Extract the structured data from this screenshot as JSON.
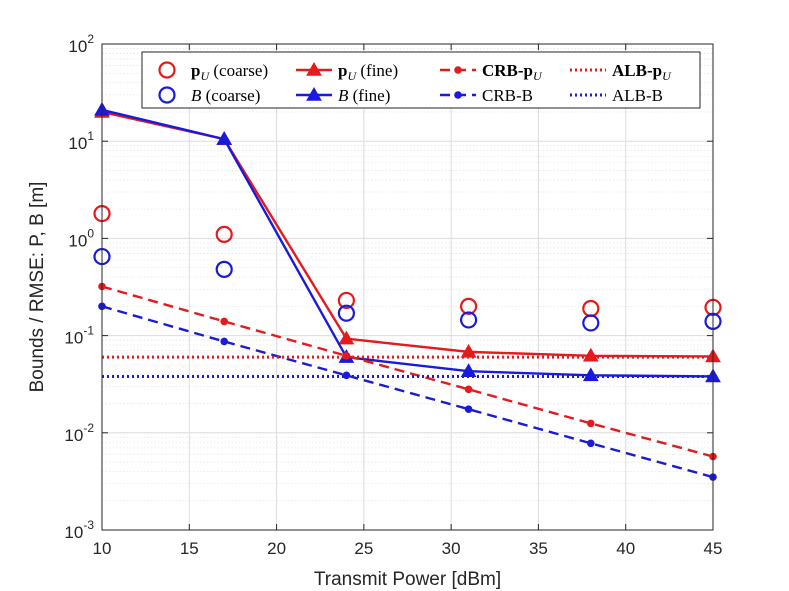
{
  "chart_data": {
    "type": "line",
    "xlabel": "Transmit Power [dBm]",
    "ylabel": "Bounds / RMSE: P, B [m]",
    "yscale": "log",
    "xlim": [
      10,
      45
    ],
    "ylim": [
      0.001,
      100
    ],
    "xticks": [
      "10",
      "15",
      "20",
      "25",
      "30",
      "35",
      "40",
      "45"
    ],
    "yticks": [
      {
        "base": "10",
        "exp": "-3"
      },
      {
        "base": "10",
        "exp": "-2"
      },
      {
        "base": "10",
        "exp": "-1"
      },
      {
        "base": "10",
        "exp": "0"
      },
      {
        "base": "10",
        "exp": "1"
      },
      {
        "base": "10",
        "exp": "2"
      }
    ],
    "grid": true,
    "legend_position": "top-right",
    "x": [
      10,
      17,
      24,
      31,
      38,
      45
    ],
    "series": [
      {
        "name": "pU (coarse)",
        "legend_main": "p",
        "legend_sub": "U",
        "legend_suffix": " (coarse)",
        "color": "#e41a1c",
        "style": "markers",
        "marker": "circle",
        "values": [
          1.8,
          1.1,
          0.23,
          0.2,
          0.19,
          0.195
        ]
      },
      {
        "name": "B (coarse)",
        "legend_main": "B",
        "legend_sub": "",
        "legend_suffix": " (coarse)",
        "color": "#1a1adb",
        "style": "markers",
        "marker": "circle",
        "values": [
          0.65,
          0.48,
          0.17,
          0.145,
          0.135,
          0.14
        ]
      },
      {
        "name": "pU (fine)",
        "legend_main": "p",
        "legend_sub": "U",
        "legend_suffix": " (fine)",
        "color": "#e41a1c",
        "style": "solid",
        "marker": "triangle",
        "values": [
          20,
          10.5,
          0.093,
          0.068,
          0.062,
          0.061
        ]
      },
      {
        "name": "B (fine)",
        "legend_main": "B",
        "legend_sub": "",
        "legend_suffix": " (fine)",
        "color": "#1a1adb",
        "style": "solid",
        "marker": "triangle",
        "values": [
          21,
          10.5,
          0.06,
          0.043,
          0.039,
          0.038
        ]
      },
      {
        "name": "CRB-pU",
        "legend_main": "CRB-p",
        "legend_sub": "U",
        "legend_suffix": "",
        "color": "#e41a1c",
        "style": "dashed",
        "marker": "dot",
        "values": [
          0.32,
          0.14,
          0.062,
          0.028,
          0.0125,
          0.0057
        ]
      },
      {
        "name": "CRB-B",
        "legend_main": "CRB-B",
        "legend_sub": "",
        "legend_suffix": "",
        "color": "#1a1adb",
        "style": "dashed",
        "marker": "dot",
        "values": [
          0.2,
          0.087,
          0.039,
          0.0175,
          0.0078,
          0.0035
        ]
      },
      {
        "name": "ALB-pU",
        "legend_main": "ALB-p",
        "legend_sub": "U",
        "legend_suffix": "",
        "color": "#e41a1c",
        "style": "dotted",
        "marker": "none",
        "values": [
          0.06,
          0.06,
          0.06,
          0.06,
          0.06,
          0.06
        ]
      },
      {
        "name": "ALB-B",
        "legend_main": "ALB-B",
        "legend_sub": "",
        "legend_suffix": "",
        "color": "#1a1adb",
        "style": "dotted",
        "marker": "none",
        "values": [
          0.038,
          0.038,
          0.038,
          0.038,
          0.038,
          0.038
        ]
      }
    ]
  }
}
